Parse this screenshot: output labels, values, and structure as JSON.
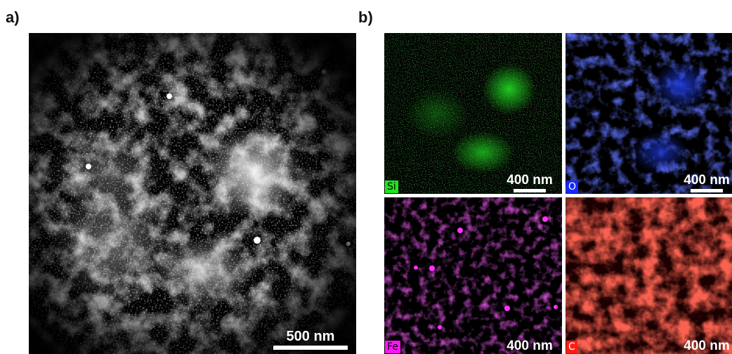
{
  "panel_a": {
    "label": "a)",
    "scale_label": "500 nm",
    "color": "#ffffff"
  },
  "panel_b": {
    "label": "b)",
    "maps": [
      {
        "element": "Si",
        "scale_label": "400 nm",
        "color": "#19c819",
        "tag_bg": "#1ee61e",
        "tag_fg": "#000000"
      },
      {
        "element": "O",
        "scale_label": "400 nm",
        "color": "#2233ee",
        "tag_bg": "#1428ff",
        "tag_fg": "#ffffff"
      },
      {
        "element": "Fe",
        "scale_label": "400 nm",
        "color": "#cc22cc",
        "tag_bg": "#ff14ff",
        "tag_fg": "#000000"
      },
      {
        "element": "C",
        "scale_label": "400 nm",
        "color": "#e8221c",
        "tag_bg": "#ff1e14",
        "tag_fg": "#ffffff"
      }
    ]
  }
}
